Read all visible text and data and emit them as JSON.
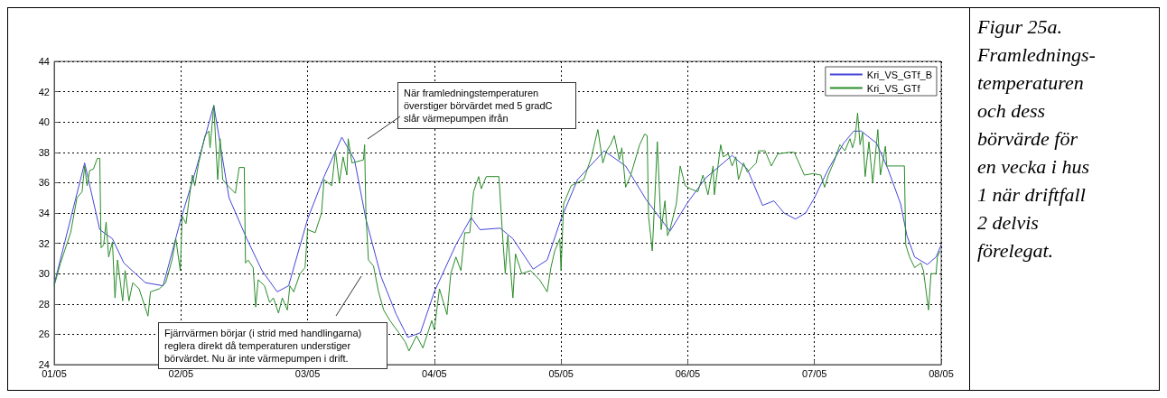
{
  "chart_data": {
    "type": "line",
    "title": "Figur 25a. Framlednings-temperaturen och dess börvärde för en vecka i hus 1 när driftfall 2 delvis förelegat.",
    "xlim": [
      "--05-01",
      "--05-08"
    ],
    "xticks": [
      {
        "value": "--05-01",
        "label": "01/05"
      },
      {
        "value": "--05-02",
        "label": "02/05"
      },
      {
        "value": "--05-03",
        "label": "03/05"
      },
      {
        "value": "--05-04",
        "label": "04/05"
      },
      {
        "value": "--05-05",
        "label": "05/05"
      },
      {
        "value": "--05-06",
        "label": "06/05"
      },
      {
        "value": "--05-07",
        "label": "07/05"
      },
      {
        "value": "--05-08",
        "label": "08/05"
      }
    ],
    "ylim": [
      24,
      44
    ],
    "yticks": [
      24,
      26,
      28,
      30,
      32,
      34,
      36,
      38,
      40,
      42,
      44
    ],
    "grid": true,
    "legend": "top right",
    "series": [
      {
        "name": "Kri_VS_GTf_B",
        "color": "#4444d8",
        "x": [
          "--05-01T00:00",
          "--05-01T05:46",
          "--05-01T08:38",
          "--05-01T11:02",
          "--05-01T13:12",
          "--05-01T17:17",
          "--05-01T20:38",
          "--05-02T00:00",
          "--05-02T02:53",
          "--05-02T06:14",
          "--05-02T09:07",
          "--05-02T12:29",
          "--05-02T15:22",
          "--05-02T18:14",
          "--05-02T20:24",
          "--05-03T00:00",
          "--05-03T03:07",
          "--05-03T06:29",
          "--05-03T08:53",
          "--05-03T11:02",
          "--05-03T13:55",
          "--05-03T16:48",
          "--05-03T18:58",
          "--05-03T21:22",
          "--05-04T00:00",
          "--05-04T04:05",
          "--05-04T06:58",
          "--05-04T08:38",
          "--05-04T12:29",
          "--05-04T14:53",
          "--05-04T18:43",
          "--05-04T21:22",
          "--05-05T00:00",
          "--05-05T03:07",
          "--05-05T08:10",
          "--05-05T12:14",
          "--05-05T16:05",
          "--05-05T20:38",
          "--05-06T00:00",
          "--05-06T03:22",
          "--05-06T08:24",
          "--05-06T11:17",
          "--05-06T14:10",
          "--05-06T16:19",
          "--05-06T18:14",
          "--05-06T20:24",
          "--05-06T22:19",
          "--05-07T00:00",
          "--05-07T02:38",
          "--05-07T05:31",
          "--05-07T07:26",
          "--05-07T08:53",
          "--05-07T11:46",
          "--05-07T13:55",
          "--05-07T16:19",
          "--05-07T17:31",
          "--05-07T18:58",
          "--05-07T21:22",
          "--05-07T23:02",
          "--05-08T00:00"
        ],
        "values": [
          29.3,
          37.3,
          32.9,
          32.3,
          30.7,
          29.4,
          29.2,
          33.6,
          36.9,
          41.1,
          35.0,
          32.3,
          30.2,
          28.8,
          29.2,
          33.6,
          36.4,
          39.0,
          37.5,
          33.6,
          29.8,
          27.3,
          25.8,
          26.1,
          28.8,
          31.9,
          33.7,
          32.9,
          33.0,
          32.3,
          30.3,
          30.9,
          33.6,
          36.2,
          38.1,
          37.1,
          34.9,
          32.8,
          34.7,
          36.3,
          37.8,
          36.9,
          34.5,
          34.8,
          34.0,
          33.6,
          34.0,
          35.0,
          36.9,
          38.6,
          39.4,
          39.4,
          38.6,
          36.9,
          34.6,
          32.5,
          31.1,
          30.6,
          31.1,
          31.9
        ]
      },
      {
        "name": "Kri_VS_GTf",
        "color": "#2a8c2a",
        "x": [
          "--05-01T00:00",
          "--05-01T01:12",
          "--05-01T03:07",
          "--05-01T04:19",
          "--05-01T05:17",
          "--05-01T05:46",
          "--05-01T06:14",
          "--05-01T06:43",
          "--05-01T07:26",
          "--05-01T08:10",
          "--05-01T08:38",
          "--05-01T08:53",
          "--05-01T09:22",
          "--05-01T09:50",
          "--05-01T10:19",
          "--05-01T11:02",
          "--05-01T11:31",
          "--05-01T12:00",
          "--05-01T12:58",
          "--05-01T13:26",
          "--05-01T14:10",
          "--05-01T14:53",
          "--05-01T16:05",
          "--05-01T17:46",
          "--05-01T18:14",
          "--05-01T19:55",
          "--05-01T21:07",
          "--05-01T22:19",
          "--05-01T23:02",
          "--05-01T23:53",
          "--05-02T00:14",
          "--05-02T00:58",
          "--05-02T01:26",
          "--05-02T02:10",
          "--05-02T02:38",
          "--05-02T03:22",
          "--05-02T04:34",
          "--05-02T05:17",
          "--05-02T05:31",
          "--05-02T06:14",
          "--05-02T06:58",
          "--05-02T07:26",
          "--05-02T07:55",
          "--05-02T08:53",
          "--05-02T10:19",
          "--05-02T11:02",
          "--05-02T12:00",
          "--05-02T12:14",
          "--05-02T12:43",
          "--05-02T13:41",
          "--05-02T14:10",
          "--05-02T14:38",
          "--05-02T15:50",
          "--05-02T16:48",
          "--05-02T17:31",
          "--05-02T18:29",
          "--05-02T19:12",
          "--05-02T20:10",
          "--05-02T20:38",
          "--05-02T21:22",
          "--05-02T22:34",
          "--05-02T23:31",
          "--05-03T00:00",
          "--05-03T01:26",
          "--05-03T02:38",
          "--05-03T03:07",
          "--05-03T04:34",
          "--05-03T05:17",
          "--05-03T06:00",
          "--05-03T06:43",
          "--05-03T07:26",
          "--05-03T07:41",
          "--05-03T08:24",
          "--05-03T10:34",
          "--05-03T10:48",
          "--05-03T11:02",
          "--05-03T11:31",
          "--05-03T12:29",
          "--05-03T13:26",
          "--05-03T14:24",
          "--05-03T15:36",
          "--05-03T17:17",
          "--05-03T18:29",
          "--05-03T19:12",
          "--05-03T20:38",
          "--05-03T21:50",
          "--05-03T23:31",
          "--05-04T00:00",
          "--05-04T00:58",
          "--05-04T02:24",
          "--05-04T03:07",
          "--05-04T04:05",
          "--05-04T05:02",
          "--05-04T05:46",
          "--05-04T06:43",
          "--05-04T07:26",
          "--05-04T08:24",
          "--05-04T08:53",
          "--05-04T09:50",
          "--05-04T12:14",
          "--05-04T12:58",
          "--05-04T13:26",
          "--05-04T13:55",
          "--05-04T14:53",
          "--05-04T15:22",
          "--05-04T16:34",
          "--05-04T18:14",
          "--05-04T19:55",
          "--05-04T21:22",
          "--05-04T22:05",
          "--05-04T22:48",
          "--05-04T23:46",
          "--05-05T00:00",
          "--05-05T00:29",
          "--05-05T01:55",
          "--05-05T04:19",
          "--05-05T05:46",
          "--05-05T06:58",
          "--05-05T07:55",
          "--05-05T08:38",
          "--05-05T09:22",
          "--05-05T10:05",
          "--05-05T11:02",
          "--05-05T11:31",
          "--05-05T12:14",
          "--05-05T13:12",
          "--05-05T14:53",
          "--05-05T15:50",
          "--05-05T16:19",
          "--05-05T16:34",
          "--05-05T17:17",
          "--05-05T17:46",
          "--05-05T18:14",
          "--05-05T18:58",
          "--05-05T19:41",
          "--05-05T20:10",
          "--05-05T20:38",
          "--05-05T21:50",
          "--05-05T22:34",
          "--05-05T23:31",
          "--05-06T00:29",
          "--05-06T01:55",
          "--05-06T02:53",
          "--05-06T03:50",
          "--05-06T04:48",
          "--05-06T05:02",
          "--05-06T06:14",
          "--05-06T06:43",
          "--05-06T07:41",
          "--05-06T08:24",
          "--05-06T09:07",
          "--05-06T09:36",
          "--05-06T10:34",
          "--05-06T11:17",
          "--05-06T12:58",
          "--05-06T13:26",
          "--05-06T14:38",
          "--05-06T15:50",
          "--05-06T17:02",
          "--05-06T19:12",
          "--05-06T20:10",
          "--05-06T22:05",
          "--05-06T23:46",
          "--05-07T01:12",
          "--05-07T01:55",
          "--05-07T02:38",
          "--05-07T03:50",
          "--05-07T04:48",
          "--05-07T05:46",
          "--05-07T06:43",
          "--05-07T07:12",
          "--05-07T07:41",
          "--05-07T08:10",
          "--05-07T08:38",
          "--05-07T09:07",
          "--05-07T09:36",
          "--05-07T10:19",
          "--05-07T11:02",
          "--05-07T12:00",
          "--05-07T12:29",
          "--05-07T13:26",
          "--05-07T13:41",
          "--05-07T17:02",
          "--05-07T17:17",
          "--05-07T18:00",
          "--05-07T18:58",
          "--05-07T20:10",
          "--05-07T20:38",
          "--05-07T21:36",
          "--05-07T22:05",
          "--05-07T23:02",
          "--05-07T23:17",
          "--05-07T23:46"
        ],
        "values": [
          29.2,
          30.7,
          32.7,
          35.0,
          35.4,
          37.1,
          35.8,
          36.8,
          36.9,
          37.6,
          37.6,
          31.7,
          31.9,
          33.4,
          31.1,
          32.1,
          28.4,
          30.9,
          28.2,
          30.2,
          28.2,
          29.4,
          29.0,
          27.2,
          28.8,
          29.0,
          29.4,
          30.9,
          32.3,
          30.2,
          33.8,
          33.3,
          34.6,
          36.5,
          35.8,
          37.3,
          39.1,
          39.4,
          38.3,
          41.1,
          36.2,
          38.9,
          36.2,
          35.8,
          35.3,
          37.0,
          37.0,
          30.7,
          30.9,
          30.4,
          27.8,
          29.6,
          29.2,
          28.1,
          28.4,
          27.4,
          28.4,
          27.6,
          29.2,
          28.8,
          30.0,
          30.4,
          32.9,
          32.7,
          34.0,
          36.2,
          35.8,
          38.1,
          36.0,
          37.7,
          36.5,
          38.9,
          37.3,
          37.5,
          38.5,
          34.0,
          30.9,
          30.5,
          28.8,
          27.6,
          26.9,
          26.1,
          25.5,
          24.9,
          25.9,
          25.1,
          26.9,
          26.3,
          29.0,
          27.3,
          30.0,
          31.1,
          30.2,
          32.7,
          32.7,
          35.4,
          36.4,
          35.6,
          36.4,
          36.4,
          32.3,
          30.0,
          32.5,
          28.4,
          31.3,
          30.0,
          30.2,
          29.6,
          28.8,
          30.4,
          31.5,
          32.3,
          30.2,
          34.6,
          35.8,
          36.2,
          37.7,
          39.5,
          37.3,
          38.1,
          38.5,
          39.1,
          37.5,
          38.3,
          35.7,
          36.5,
          38.5,
          39.2,
          39.1,
          33.8,
          31.5,
          35.0,
          38.7,
          32.9,
          34.8,
          32.5,
          32.9,
          34.6,
          37.1,
          35.8,
          35.6,
          35.4,
          36.5,
          35.2,
          37.1,
          35.2,
          38.5,
          37.7,
          37.9,
          37.1,
          37.7,
          36.2,
          37.3,
          36.7,
          37.3,
          38.1,
          38.1,
          37.1,
          37.9,
          38.0,
          38.0,
          36.5,
          36.6,
          36.5,
          35.7,
          36.5,
          37.5,
          38.5,
          38.1,
          38.9,
          38.3,
          38.9,
          40.6,
          38.5,
          39.3,
          36.4,
          38.7,
          36.0,
          39.5,
          36.5,
          38.4,
          37.1,
          37.1,
          31.9,
          31.1,
          30.4,
          30.7,
          30.2,
          27.6,
          30.0,
          30.0,
          31.1,
          31.5
        ]
      }
    ],
    "annotations": [
      "När framledningstemperaturen överstiger börvärdet med 5 gradC slår värmepumpen ifrån",
      "Fjärrvärmen börjar (i strid med handlingarna) reglera direkt då temperaturen understiger börvärdet. Nu är inte värmepumpen i drift."
    ]
  }
}
